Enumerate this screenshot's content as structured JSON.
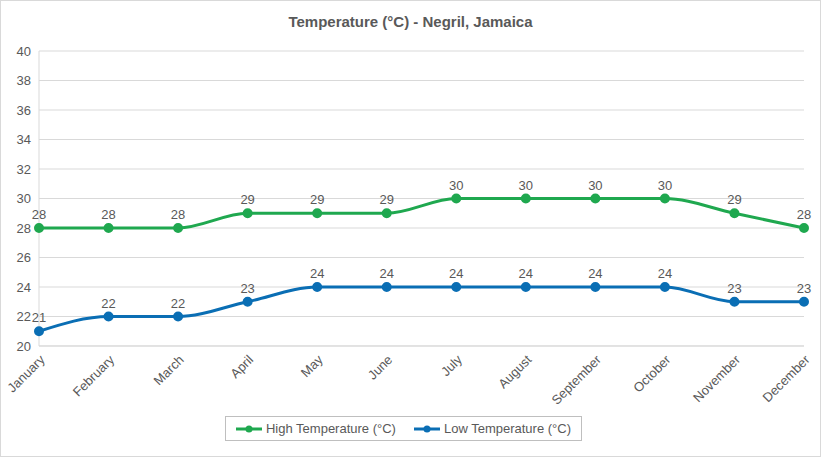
{
  "chart_data": {
    "type": "line",
    "title": "Temperature (°C) - Negril, Jamaica",
    "categories": [
      "January",
      "February",
      "March",
      "April",
      "May",
      "June",
      "July",
      "August",
      "September",
      "October",
      "November",
      "December"
    ],
    "series": [
      {
        "name": "High Temperature (°C)",
        "color": "#1fa84f",
        "marker": "circle",
        "line_style": "solid",
        "values": [
          28,
          28,
          28,
          29,
          29,
          29,
          30,
          30,
          30,
          30,
          29,
          28
        ]
      },
      {
        "name": "Low Temperature (°C)",
        "color": "#0a6eb4",
        "marker": "circle",
        "line_style": "solid",
        "values": [
          21,
          22,
          22,
          23,
          24,
          24,
          24,
          24,
          24,
          24,
          23,
          23
        ]
      }
    ],
    "ylim": [
      20,
      40
    ],
    "yticks": [
      20,
      22,
      24,
      26,
      28,
      30,
      32,
      34,
      36,
      38,
      40
    ],
    "grid": true,
    "legend": "bottom",
    "data_labels": true
  }
}
